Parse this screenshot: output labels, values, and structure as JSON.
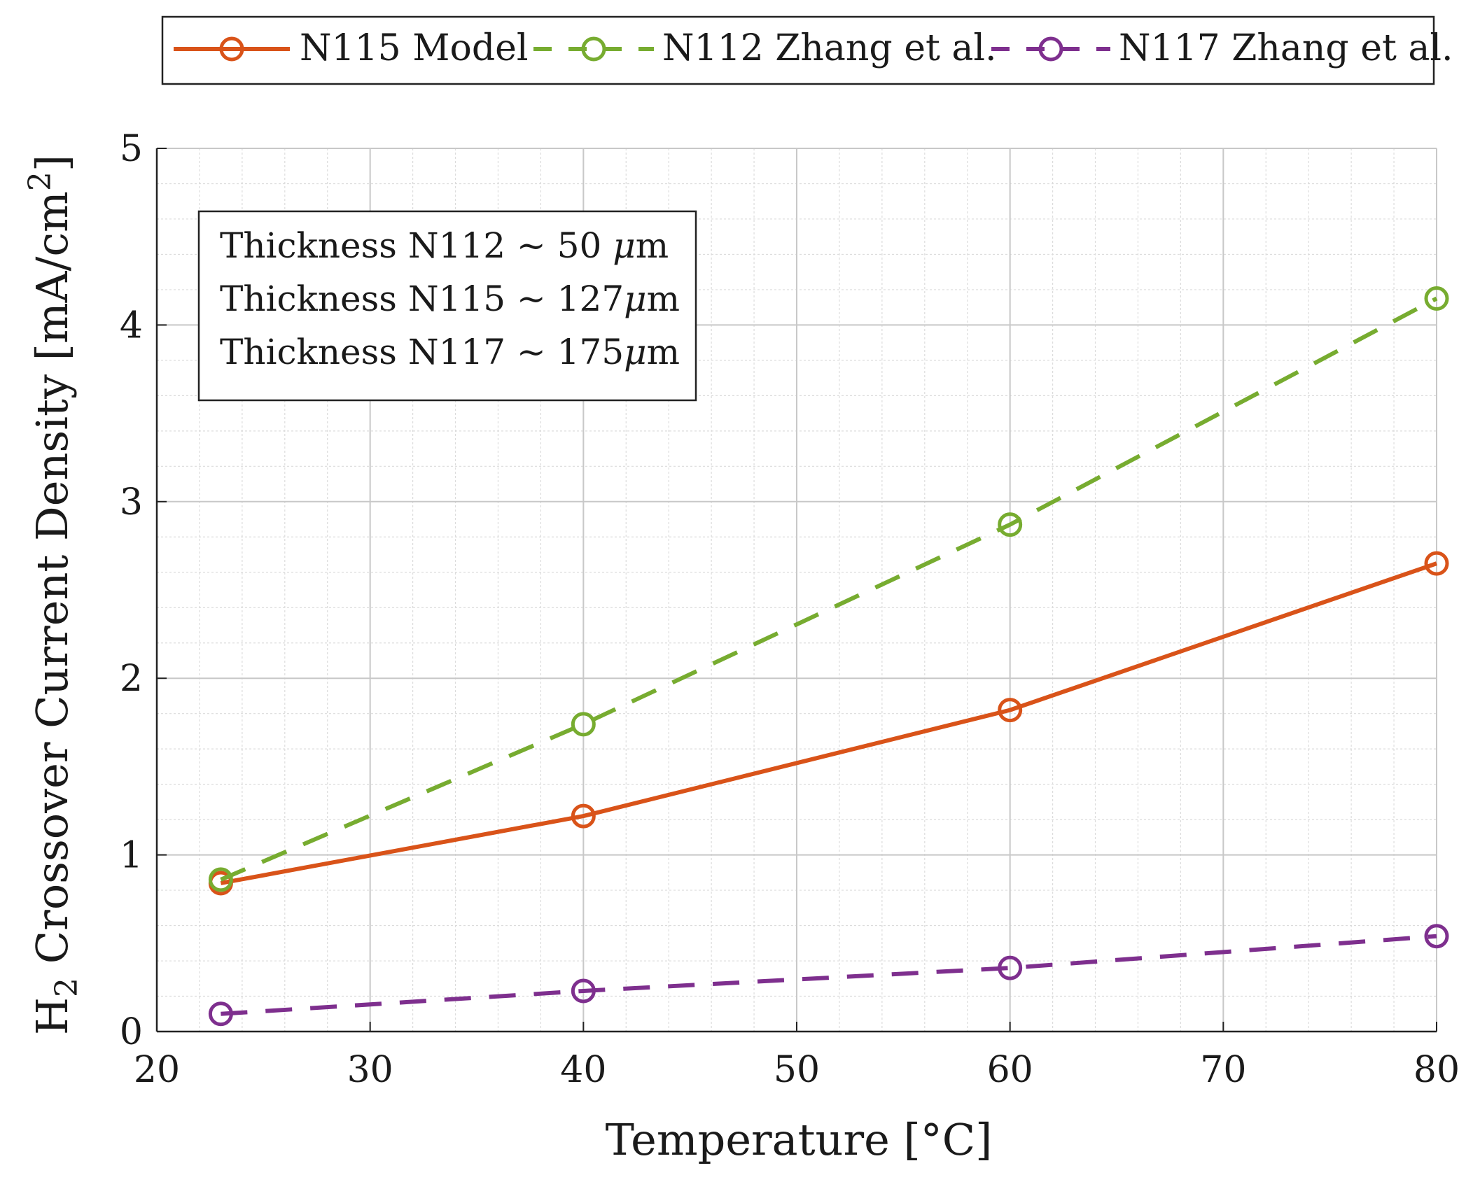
{
  "chart_data": {
    "type": "line",
    "xlabel": "Temperature [°C]",
    "ylabel": {
      "prefix": "H",
      "subscript": "2",
      "middle": " Crossover Current Density [mA/cm",
      "superscript": "2",
      "suffix": "]"
    },
    "xlim": [
      20,
      80
    ],
    "ylim": [
      0,
      5
    ],
    "xticks": [
      "20",
      "30",
      "40",
      "50",
      "60",
      "70",
      "80"
    ],
    "yticks": [
      "0",
      "1",
      "2",
      "3",
      "4",
      "5"
    ],
    "grid": true,
    "minor_grid": true,
    "legend_position": "top, outside",
    "series": [
      {
        "name": "N115 Model",
        "color": "#d95319",
        "dash": "solid",
        "marker": "circle",
        "x": [
          23,
          40,
          60,
          80
        ],
        "y": [
          0.84,
          1.22,
          1.82,
          2.65
        ]
      },
      {
        "name": "N112 Zhang et al.",
        "color": "#77ac30",
        "dash": "dashed",
        "marker": "circle",
        "x": [
          23,
          40,
          60,
          80
        ],
        "y": [
          0.86,
          1.74,
          2.87,
          4.15
        ]
      },
      {
        "name": "N117 Zhang et al.",
        "color": "#7e2f8e",
        "dash": "dashed",
        "marker": "circle",
        "x": [
          23,
          40,
          60,
          80
        ],
        "y": [
          0.1,
          0.23,
          0.36,
          0.54
        ]
      }
    ],
    "annotation": {
      "lines": [
        {
          "text": "Thickness N112 ~ 50 ",
          "unit": "μ",
          "tail": "m"
        },
        {
          "text": "Thickness N115 ~ 127",
          "unit": "μ",
          "tail": "m"
        },
        {
          "text": "Thickness N117 ~ 175",
          "unit": "μ",
          "tail": "m"
        }
      ]
    }
  }
}
